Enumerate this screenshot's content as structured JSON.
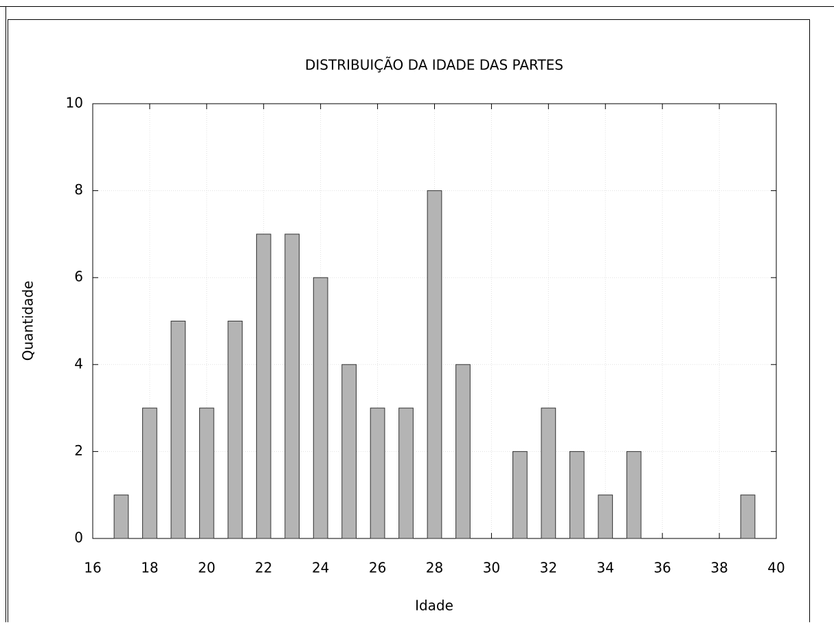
{
  "chart_data": {
    "type": "bar",
    "title": "DISTRIBUIÇÃO DA IDADE DAS PARTES",
    "x_label": "Idade",
    "y_label": "Quantidade",
    "x": [
      17,
      18,
      19,
      20,
      21,
      22,
      23,
      24,
      25,
      26,
      27,
      28,
      29,
      31,
      32,
      33,
      34,
      35,
      39
    ],
    "values": [
      1,
      3,
      5,
      3,
      5,
      7,
      7,
      6,
      4,
      3,
      3,
      8,
      4,
      2,
      3,
      2,
      1,
      2,
      1
    ],
    "color": "#b4b4b4",
    "xlim": [
      16,
      40
    ],
    "xticks": [
      16,
      18,
      20,
      22,
      24,
      26,
      28,
      30,
      32,
      34,
      36,
      38,
      40
    ],
    "ylim": [
      0,
      10
    ],
    "yticks": [
      0,
      2,
      4,
      6,
      8,
      10
    ],
    "grid": true
  }
}
